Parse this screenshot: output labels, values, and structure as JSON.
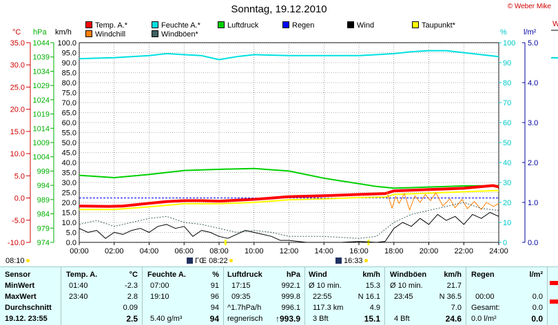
{
  "header": {
    "title": "Sonntag, 19.12.2010",
    "copyright": "© Weber Mike"
  },
  "axis_units": {
    "temp": "°C",
    "pressure": "hPa",
    "wind": "km/h",
    "humidity": "%",
    "rain": "l/m²",
    "cut_right": "W"
  },
  "legend": [
    {
      "label": "Temp. A.*",
      "color": "#ff0000"
    },
    {
      "label": "Feuchte A.*",
      "color": "#00e0e0"
    },
    {
      "label": "Luftdruck",
      "color": "#00d000"
    },
    {
      "label": "Regen",
      "color": "#0000ff"
    },
    {
      "label": "Wind",
      "color": "#000000"
    },
    {
      "label": "Taupunkt*",
      "color": "#ffff00"
    },
    {
      "label": "Windchill",
      "color": "#ff8000"
    },
    {
      "label": "Windböen*",
      "color": "#406060"
    }
  ],
  "sun": {
    "left_label": "08:10",
    "sunrise": "08:22",
    "sunset": "16:33"
  },
  "chart_data": {
    "type": "line",
    "x_ticks": [
      "00:00",
      "02:00",
      "04:00",
      "06:00",
      "08:00",
      "10:00",
      "12:00",
      "14:00",
      "16:00",
      "18:00",
      "20:00",
      "22:00",
      "24:00"
    ],
    "xlim": [
      0,
      24
    ],
    "axes": {
      "temp": {
        "ticks": [
          "35.0",
          "30.0",
          "25.0",
          "20.0",
          "15.0",
          "10.0",
          "5.0",
          "0.0",
          "-5.0",
          "-10.0"
        ],
        "ylim": [
          -10,
          35
        ],
        "color": "#d00000"
      },
      "pressure": {
        "ticks": [
          "1044",
          "1039",
          "1034",
          "1029",
          "1024",
          "1019",
          "1014",
          "1009",
          "1004",
          "999",
          "994",
          "989",
          "984",
          "979",
          "974"
        ],
        "ylim": [
          974,
          1044
        ],
        "color": "#00b000"
      },
      "wind": {
        "ticks": [
          "100.0",
          "95.0",
          "90.0",
          "85.0",
          "80.0",
          "75.0",
          "70.0",
          "65.0",
          "60.0",
          "55.0",
          "50.0",
          "45.0",
          "40.0",
          "35.0",
          "30.0",
          "25.0",
          "20.0",
          "15.0",
          "10.0",
          "5.0",
          "0.0"
        ],
        "ylim": [
          0,
          100
        ],
        "color": "#000000"
      },
      "humidity": {
        "ticks": [
          "100",
          "90",
          "80",
          "70",
          "60",
          "50",
          "40",
          "30",
          "20",
          "10",
          "0"
        ],
        "ylim": [
          0,
          100
        ],
        "color": "#00c8c8"
      },
      "rain": {
        "ticks": [
          "5.0",
          "4.0",
          "3.0",
          "2.0",
          "1.0",
          "0.0"
        ],
        "ylim": [
          0,
          5
        ],
        "color": "#0000a0"
      }
    },
    "series": [
      {
        "name": "Feuchte A.*",
        "axis": "humidity",
        "color": "#00e0e0",
        "width": 2,
        "points": [
          [
            0,
            92
          ],
          [
            2,
            92.5
          ],
          [
            4,
            93.5
          ],
          [
            5,
            94.5
          ],
          [
            6,
            94
          ],
          [
            7,
            93.5
          ],
          [
            8,
            91.5
          ],
          [
            9,
            93
          ],
          [
            10,
            94
          ],
          [
            12,
            93.5
          ],
          [
            14,
            93.5
          ],
          [
            16,
            93.5
          ],
          [
            17,
            94
          ],
          [
            18,
            94.5
          ],
          [
            19,
            95.5
          ],
          [
            20,
            96
          ],
          [
            21,
            96
          ],
          [
            22,
            95
          ],
          [
            23,
            94
          ],
          [
            24,
            93
          ]
        ]
      },
      {
        "name": "Luftdruck",
        "axis": "pressure",
        "color": "#00d000",
        "width": 2,
        "points": [
          [
            0,
            997.5
          ],
          [
            2,
            996.7
          ],
          [
            4,
            997.8
          ],
          [
            6,
            999.2
          ],
          [
            8,
            999.6
          ],
          [
            10,
            999.9
          ],
          [
            12,
            999.0
          ],
          [
            14,
            996.5
          ],
          [
            15,
            995.5
          ],
          [
            16,
            994.6
          ],
          [
            17,
            993.6
          ],
          [
            18,
            993.0
          ],
          [
            19,
            993.2
          ],
          [
            20,
            993.4
          ],
          [
            22,
            993.8
          ],
          [
            24,
            993.9
          ]
        ]
      },
      {
        "name": "Temp. A.*",
        "axis": "temp",
        "color": "#ff0000",
        "width": 4,
        "points": [
          [
            0,
            -1.8
          ],
          [
            1.67,
            -1.9
          ],
          [
            2.5,
            -1.8
          ],
          [
            4,
            -1.2
          ],
          [
            5,
            -0.8
          ],
          [
            6,
            -0.6
          ],
          [
            7,
            -0.6
          ],
          [
            8,
            -0.7
          ],
          [
            9,
            -0.5
          ],
          [
            10,
            -0.3
          ],
          [
            11,
            0.0
          ],
          [
            12,
            0.3
          ],
          [
            14,
            0.5
          ],
          [
            16,
            0.8
          ],
          [
            17.5,
            1.0
          ],
          [
            18,
            1.6
          ],
          [
            20,
            1.9
          ],
          [
            22,
            2.2
          ],
          [
            23.67,
            2.8
          ],
          [
            24,
            2.5
          ]
        ]
      },
      {
        "name": "Taupunkt*",
        "axis": "temp",
        "color": "#ffff00",
        "width": 2,
        "points": [
          [
            0,
            -2.6
          ],
          [
            2,
            -2.6
          ],
          [
            4,
            -2.0
          ],
          [
            6,
            -1.3
          ],
          [
            8,
            -1.3
          ],
          [
            10,
            -1.0
          ],
          [
            12,
            -0.4
          ],
          [
            14,
            -0.2
          ],
          [
            16,
            0.1
          ],
          [
            17.5,
            0.2
          ],
          [
            18,
            0.8
          ],
          [
            20,
            1.1
          ],
          [
            22,
            1.4
          ],
          [
            24,
            1.7
          ]
        ]
      },
      {
        "name": "Windchill",
        "axis": "temp",
        "color": "#ff8000",
        "width": 1,
        "points": [
          [
            17.6,
            1.4
          ],
          [
            17.9,
            -2.3
          ],
          [
            18.1,
            0.4
          ],
          [
            18.3,
            -1.2
          ],
          [
            18.6,
            1.0
          ],
          [
            18.9,
            -2.7
          ],
          [
            19.2,
            0.5
          ],
          [
            19.5,
            -1.0
          ],
          [
            19.8,
            0.8
          ],
          [
            20.1,
            -0.6
          ],
          [
            20.4,
            1.2
          ],
          [
            20.8,
            -1.8
          ],
          [
            21.2,
            -0.2
          ],
          [
            21.5,
            -2.2
          ],
          [
            21.9,
            -0.3
          ],
          [
            22.2,
            -2.4
          ],
          [
            22.6,
            -0.8
          ],
          [
            23.0,
            -2.6
          ],
          [
            23.3,
            -1.0
          ],
          [
            23.7,
            -1.9
          ],
          [
            24,
            -1.2
          ]
        ]
      },
      {
        "name": "Windböen*",
        "axis": "wind",
        "color": "#406060",
        "width": 1,
        "dash": "2,2",
        "points": [
          [
            0,
            9
          ],
          [
            1,
            11
          ],
          [
            2,
            8
          ],
          [
            3,
            10
          ],
          [
            4,
            12
          ],
          [
            5,
            13
          ],
          [
            6,
            10
          ],
          [
            7,
            9
          ],
          [
            8,
            7
          ],
          [
            9,
            5
          ],
          [
            10,
            6
          ],
          [
            11,
            5
          ],
          [
            12,
            3
          ],
          [
            14,
            3
          ],
          [
            16,
            2
          ],
          [
            17,
            3
          ],
          [
            18,
            10
          ],
          [
            19,
            14
          ],
          [
            20,
            16
          ],
          [
            21,
            18
          ],
          [
            22,
            20
          ],
          [
            23,
            17
          ],
          [
            24,
            16
          ]
        ]
      },
      {
        "name": "Wind",
        "axis": "wind",
        "color": "#000000",
        "width": 1,
        "points": [
          [
            0,
            7
          ],
          [
            0.5,
            5
          ],
          [
            1,
            6
          ],
          [
            1.5,
            2
          ],
          [
            2,
            5
          ],
          [
            2.5,
            4
          ],
          [
            3,
            6
          ],
          [
            3.5,
            7
          ],
          [
            4,
            5
          ],
          [
            4.5,
            8
          ],
          [
            5,
            9
          ],
          [
            5.5,
            7
          ],
          [
            6,
            8
          ],
          [
            6.5,
            3
          ],
          [
            7,
            6
          ],
          [
            7.5,
            5
          ],
          [
            8,
            3
          ],
          [
            8.5,
            2
          ],
          [
            9,
            4
          ],
          [
            9.5,
            6
          ],
          [
            10,
            5
          ],
          [
            10.5,
            4
          ],
          [
            11,
            3
          ],
          [
            11.5,
            1
          ],
          [
            12,
            1
          ],
          [
            13,
            0
          ],
          [
            15,
            0
          ],
          [
            16,
            0.5
          ],
          [
            17,
            0
          ],
          [
            17.5,
            0.5
          ],
          [
            18,
            7
          ],
          [
            18.5,
            10
          ],
          [
            19,
            8
          ],
          [
            19.5,
            12
          ],
          [
            20,
            9
          ],
          [
            20.5,
            14
          ],
          [
            21,
            11
          ],
          [
            21.5,
            13
          ],
          [
            22,
            9
          ],
          [
            22.5,
            14
          ],
          [
            23,
            12
          ],
          [
            23.5,
            15
          ],
          [
            24,
            13
          ]
        ]
      }
    ],
    "reference_line": {
      "axis": "temp",
      "value": 0,
      "color": "#0000ff"
    },
    "daylight": [
      8.37,
      16.55
    ],
    "xlabel": "",
    "grid": true
  },
  "table": {
    "col_sensor": {
      "header": "Sensor",
      "rows": [
        "MinWert",
        "MaxWert",
        "Durchschnitt",
        "19.12. 23:55"
      ]
    },
    "col_temp": {
      "header": "Temp. A.",
      "unit": "°C",
      "min_time": "01:40",
      "min": "-2.3",
      "max_time": "23:40",
      "max": "2.8",
      "avg": "0.09",
      "current": "2.5"
    },
    "col_hum": {
      "header": "Feuchte A.",
      "unit": "%",
      "min_time": "07:00",
      "min": "91",
      "max_time": "19:10",
      "max": "96",
      "avg": "94",
      "abs": "5.40 g/m³",
      "current": "94"
    },
    "col_press": {
      "header": "Luftdruck",
      "unit": "hPa",
      "min_time": "17:15",
      "min": "992.1",
      "max_time": "09:35",
      "max": "999.8",
      "trend": "^1.7hPa/h",
      "avg": "996.1",
      "forecast": "regnerisch",
      "current": "↑993.9"
    },
    "col_wind": {
      "header": "Wind",
      "unit": "km/h",
      "r1_label": "Ø 10 min.",
      "r1_value": "15.3",
      "r2_label": "22:55",
      "r2_value": "N 16.1",
      "r3_label": "117.3 km",
      "r3_value": "4.9",
      "r4_label": "3 Bft",
      "r4_value": "15.1"
    },
    "col_gust": {
      "header": "Windböen",
      "unit": "km/h",
      "r1_label": "Ø 10 min.",
      "r1_value": "21.7",
      "r2_label": "23:45",
      "r2_value": "N 36.5",
      "r3_value": "7.0",
      "r4_label": "4 Bft",
      "r4_value": "24.6"
    },
    "col_rain": {
      "header": "Regen",
      "unit": "l/m²",
      "r2_label": "00:00",
      "r2_value": "0.0",
      "r3_label": "Gesamt:",
      "r3_value": "0.0",
      "r4_label": "0.0 l/m²",
      "r4_value": "0.0"
    }
  }
}
